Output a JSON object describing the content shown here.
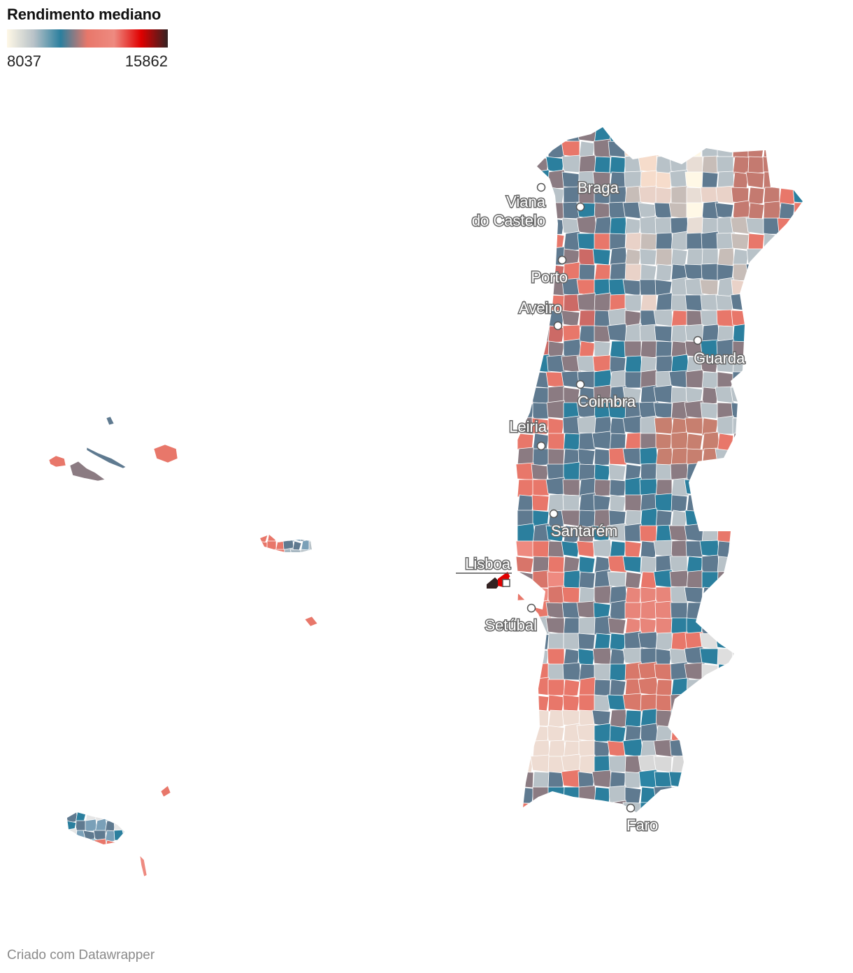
{
  "legend": {
    "title": "Rendimento mediano",
    "min_label": "8037",
    "max_label": "15862",
    "gradient_colors": [
      "#fff8e6",
      "#b8c2c8",
      "#2b7f9e",
      "#e8776a",
      "#ee8a80",
      "#e00000",
      "#332222"
    ]
  },
  "cities": [
    {
      "name": "Braga",
      "lines": [
        "Braga"
      ]
    },
    {
      "name": "Viana do Castelo",
      "lines": [
        "Viana",
        "do Castelo"
      ]
    },
    {
      "name": "Porto",
      "lines": [
        "Porto"
      ]
    },
    {
      "name": "Aveiro",
      "lines": [
        "Aveiro"
      ]
    },
    {
      "name": "Guarda",
      "lines": [
        "Guarda"
      ]
    },
    {
      "name": "Coimbra",
      "lines": [
        "Coimbra"
      ]
    },
    {
      "name": "Leiria",
      "lines": [
        "Leiria"
      ]
    },
    {
      "name": "Santarém",
      "lines": [
        "Santarém"
      ]
    },
    {
      "name": "Lisboa",
      "lines": [
        "Lisboa"
      ]
    },
    {
      "name": "Setúbal",
      "lines": [
        "Setúbal"
      ]
    },
    {
      "name": "Faro",
      "lines": [
        "Faro"
      ]
    }
  ],
  "credit": "Criado com Datawrapper",
  "colors": {
    "low": "#fff8e6",
    "grey": "#b8c2c8",
    "blue": "#2b7f9e",
    "slate": "#5f7a90",
    "mauve": "#8b7b82",
    "salmon": "#e8776a",
    "red": "#e00000",
    "dark": "#332222"
  }
}
